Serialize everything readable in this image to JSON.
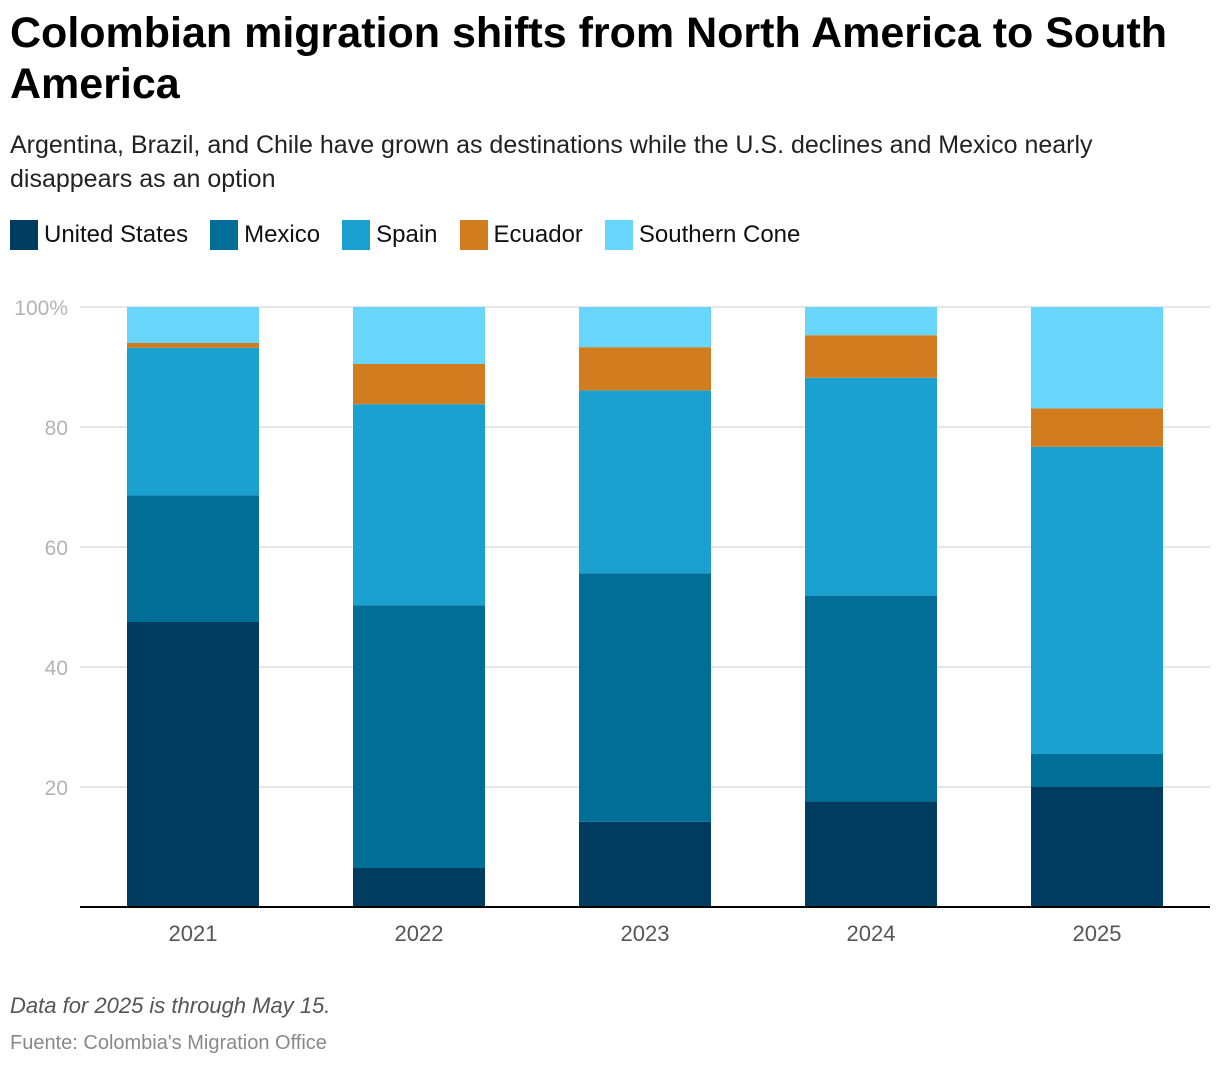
{
  "title": "Colombian migration shifts from North America to South America",
  "subtitle": "Argentina, Brazil, and Chile have grown as destinations while the U.S. declines and Mexico nearly disappears as an option",
  "note": "Data for 2025 is through May 15.",
  "source": "Fuente: Colombia's Migration Office",
  "chart_data": {
    "type": "bar",
    "stacked": true,
    "categories": [
      "2021",
      "2022",
      "2023",
      "2024",
      "2025"
    ],
    "series": [
      {
        "name": "United States",
        "color": "#003c5f",
        "values": [
          47.5,
          6.5,
          14.2,
          17.6,
          20.0
        ]
      },
      {
        "name": "Mexico",
        "color": "#006e97",
        "values": [
          21.1,
          43.8,
          41.4,
          34.3,
          5.5
        ]
      },
      {
        "name": "Spain",
        "color": "#1aa1cf",
        "values": [
          24.6,
          33.5,
          30.5,
          36.3,
          51.2
        ]
      },
      {
        "name": "Ecuador",
        "color": "#d07c1f",
        "values": [
          0.8,
          6.7,
          7.2,
          7.1,
          6.4
        ]
      },
      {
        "name": "Southern Cone",
        "color": "#68d6fb",
        "values": [
          6.0,
          9.5,
          6.7,
          4.7,
          16.9
        ]
      }
    ],
    "ylim": [
      0,
      100
    ],
    "yticks": [
      "20",
      "40",
      "60",
      "80",
      "100%"
    ],
    "grid": true,
    "legend": "top-left"
  }
}
